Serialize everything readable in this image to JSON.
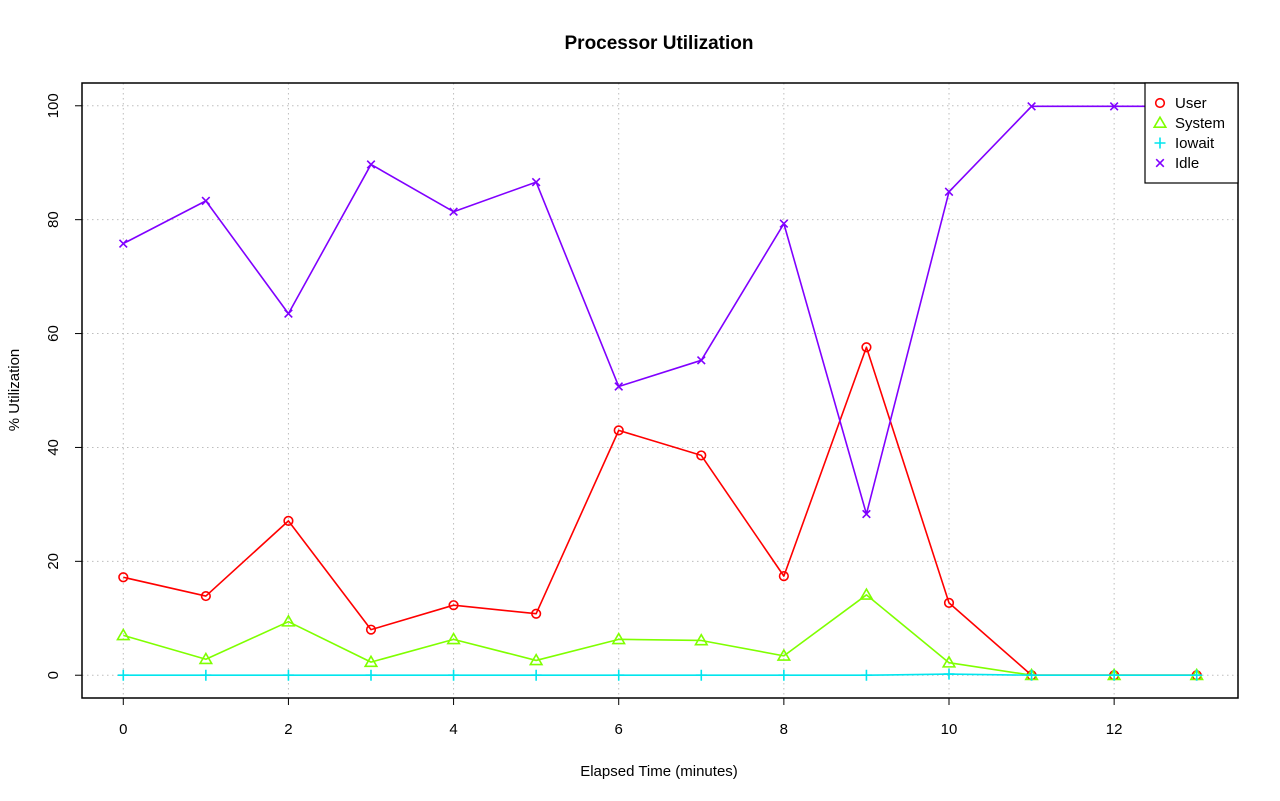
{
  "chart_data": {
    "type": "line",
    "title": "Processor Utilization",
    "xlabel": "Elapsed Time (minutes)",
    "ylabel": "% Utilization",
    "x": [
      0,
      1,
      2,
      3,
      4,
      5,
      6,
      7,
      8,
      9,
      10,
      11,
      12,
      13
    ],
    "xlim": [
      -0.5,
      13.5
    ],
    "ylim": [
      -4,
      104
    ],
    "xticks": [
      0,
      2,
      4,
      6,
      8,
      10,
      12
    ],
    "yticks": [
      0,
      20,
      40,
      60,
      80,
      100
    ],
    "grid": true,
    "legend_position": "top-right",
    "series": [
      {
        "name": "User",
        "color": "#ff0000",
        "marker": "circle",
        "values": [
          17.2,
          13.9,
          27.1,
          8.0,
          12.3,
          10.8,
          43.0,
          38.6,
          17.4,
          57.6,
          12.7,
          0,
          0,
          0
        ]
      },
      {
        "name": "System",
        "color": "#7fff00",
        "marker": "triangle",
        "values": [
          7.0,
          2.8,
          9.4,
          2.3,
          6.3,
          2.6,
          6.3,
          6.1,
          3.4,
          14.1,
          2.2,
          0,
          0,
          0
        ]
      },
      {
        "name": "Iowait",
        "color": "#00e5ee",
        "marker": "plus",
        "values": [
          0,
          0,
          0,
          0,
          0,
          0,
          0,
          0,
          0,
          0,
          0.2,
          0,
          0,
          0
        ]
      },
      {
        "name": "Idle",
        "color": "#8000ff",
        "marker": "cross",
        "values": [
          75.8,
          83.3,
          63.5,
          89.7,
          81.4,
          86.6,
          50.7,
          55.3,
          79.3,
          28.3,
          84.9,
          99.9,
          99.9,
          99.9
        ]
      }
    ]
  }
}
